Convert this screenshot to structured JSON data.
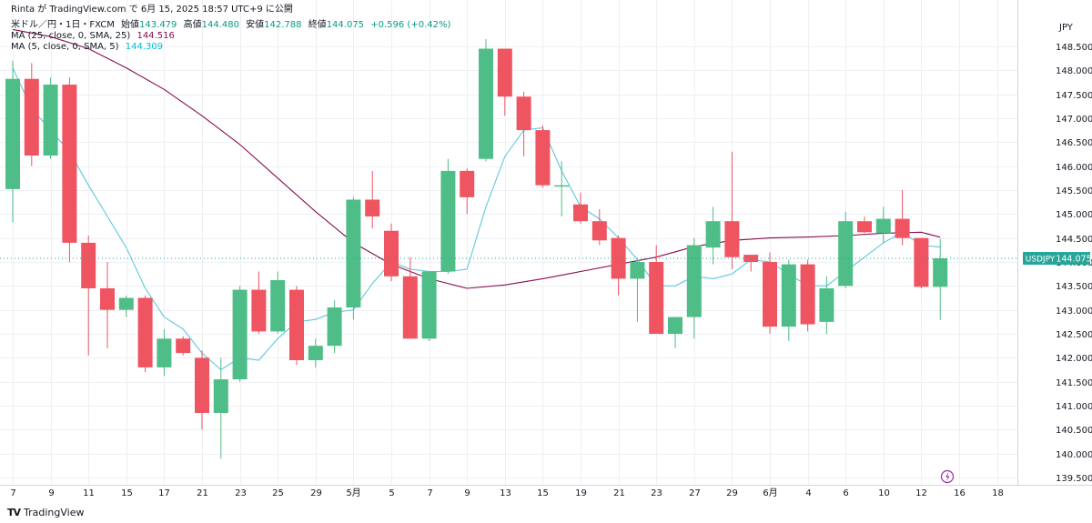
{
  "header": {
    "publish_line": "Rinta が TradingView.com で 6月 15, 2025 18:57 UTC+9 に公開",
    "symbol_line": "米ドル／円・1日・FXCM",
    "open_label": "始値",
    "open_value": "143.479",
    "high_label": "高値",
    "high_value": "144.480",
    "low_label": "安値",
    "low_value": "142.788",
    "close_label": "終値",
    "close_value": "144.075",
    "change_value": "+0.596 (+0.42%)",
    "ma25_label": "MA (25, close, 0, SMA, 25)",
    "ma25_value": "144.516",
    "ma5_label": "MA (5, close, 0, SMA, 5)",
    "ma5_value": "144.309"
  },
  "footer": {
    "logo_text": "TV",
    "brand": "TradingView"
  },
  "colors": {
    "up": "#4fbd87",
    "down": "#ef5461",
    "ma25": "#880e4f",
    "ma5": "#5ec8dc",
    "grid": "#eef0f4",
    "axis_text": "#131722",
    "price_tag": "#26a69a"
  },
  "chart_data": {
    "type": "candlestick",
    "currency": "JPY",
    "symbol_tag": "USDJPY",
    "last_price": 144.075,
    "ylim": [
      139.35,
      149.2
    ],
    "y_ticks": [
      139.5,
      140.0,
      140.5,
      141.0,
      141.5,
      142.0,
      142.5,
      143.0,
      143.5,
      144.0,
      144.5,
      145.0,
      145.5,
      146.0,
      146.5,
      147.0,
      147.5,
      148.0,
      148.5
    ],
    "x_ticks": [
      {
        "i": 0,
        "label": "7"
      },
      {
        "i": 2,
        "label": "9"
      },
      {
        "i": 4,
        "label": "11"
      },
      {
        "i": 6,
        "label": "15"
      },
      {
        "i": 8,
        "label": "17"
      },
      {
        "i": 10,
        "label": "21"
      },
      {
        "i": 12,
        "label": "23"
      },
      {
        "i": 14,
        "label": "25"
      },
      {
        "i": 16,
        "label": "29"
      },
      {
        "i": 18,
        "label": "5月"
      },
      {
        "i": 20,
        "label": "5"
      },
      {
        "i": 22,
        "label": "7"
      },
      {
        "i": 24,
        "label": "9"
      },
      {
        "i": 26,
        "label": "13"
      },
      {
        "i": 28,
        "label": "15"
      },
      {
        "i": 30,
        "label": "19"
      },
      {
        "i": 32,
        "label": "21"
      },
      {
        "i": 34,
        "label": "23"
      },
      {
        "i": 36,
        "label": "27"
      },
      {
        "i": 38,
        "label": "29"
      },
      {
        "i": 40,
        "label": "6月"
      },
      {
        "i": 42,
        "label": "4"
      },
      {
        "i": 44,
        "label": "6"
      },
      {
        "i": 46,
        "label": "10"
      },
      {
        "i": 48,
        "label": "12"
      },
      {
        "i": 50,
        "label": "16"
      },
      {
        "i": 52,
        "label": "18"
      }
    ],
    "candles": [
      {
        "o": 145.52,
        "h": 148.2,
        "l": 144.82,
        "c": 147.82
      },
      {
        "o": 147.82,
        "h": 148.15,
        "l": 146.0,
        "c": 146.22
      },
      {
        "o": 146.22,
        "h": 147.85,
        "l": 146.15,
        "c": 147.7
      },
      {
        "o": 147.7,
        "h": 147.85,
        "l": 144.0,
        "c": 144.4
      },
      {
        "o": 144.4,
        "h": 144.55,
        "l": 142.05,
        "c": 143.45
      },
      {
        "o": 143.45,
        "h": 144.0,
        "l": 142.2,
        "c": 143.0
      },
      {
        "o": 143.0,
        "h": 143.3,
        "l": 142.85,
        "c": 143.25
      },
      {
        "o": 143.25,
        "h": 143.3,
        "l": 141.7,
        "c": 141.8
      },
      {
        "o": 141.8,
        "h": 142.6,
        "l": 141.62,
        "c": 142.4
      },
      {
        "o": 142.4,
        "h": 142.45,
        "l": 142.05,
        "c": 142.1
      },
      {
        "o": 142.0,
        "h": 142.15,
        "l": 140.5,
        "c": 140.85
      },
      {
        "o": 140.85,
        "h": 142.0,
        "l": 139.9,
        "c": 141.55
      },
      {
        "o": 141.55,
        "h": 143.5,
        "l": 141.5,
        "c": 143.42
      },
      {
        "o": 143.42,
        "h": 143.8,
        "l": 142.5,
        "c": 142.55
      },
      {
        "o": 142.55,
        "h": 143.8,
        "l": 142.5,
        "c": 143.62
      },
      {
        "o": 143.42,
        "h": 143.5,
        "l": 141.85,
        "c": 141.95
      },
      {
        "o": 141.95,
        "h": 142.4,
        "l": 141.8,
        "c": 142.25
      },
      {
        "o": 142.25,
        "h": 143.2,
        "l": 142.1,
        "c": 143.05
      },
      {
        "o": 143.05,
        "h": 145.35,
        "l": 142.8,
        "c": 145.3
      },
      {
        "o": 145.3,
        "h": 145.9,
        "l": 144.7,
        "c": 144.95
      },
      {
        "o": 144.65,
        "h": 144.8,
        "l": 143.6,
        "c": 143.7
      },
      {
        "o": 143.7,
        "h": 144.1,
        "l": 142.4,
        "c": 142.4
      },
      {
        "o": 142.4,
        "h": 143.8,
        "l": 142.35,
        "c": 143.8
      },
      {
        "o": 143.8,
        "h": 146.15,
        "l": 143.75,
        "c": 145.9
      },
      {
        "o": 145.9,
        "h": 145.95,
        "l": 145.0,
        "c": 145.35
      },
      {
        "o": 146.15,
        "h": 148.65,
        "l": 146.1,
        "c": 148.45
      },
      {
        "o": 148.45,
        "h": 148.45,
        "l": 147.05,
        "c": 147.45
      },
      {
        "o": 147.45,
        "h": 147.55,
        "l": 146.2,
        "c": 146.75
      },
      {
        "o": 146.75,
        "h": 146.85,
        "l": 145.55,
        "c": 145.6
      },
      {
        "o": 145.6,
        "h": 146.1,
        "l": 144.95,
        "c": 145.6
      },
      {
        "o": 145.2,
        "h": 145.45,
        "l": 144.8,
        "c": 144.85
      },
      {
        "o": 144.85,
        "h": 145.1,
        "l": 144.35,
        "c": 144.45
      },
      {
        "o": 144.5,
        "h": 144.55,
        "l": 143.3,
        "c": 143.65
      },
      {
        "o": 143.65,
        "h": 144.05,
        "l": 142.75,
        "c": 144.0
      },
      {
        "o": 144.0,
        "h": 144.35,
        "l": 142.5,
        "c": 142.5
      },
      {
        "o": 142.5,
        "h": 142.85,
        "l": 142.2,
        "c": 142.85
      },
      {
        "o": 142.85,
        "h": 144.5,
        "l": 142.4,
        "c": 144.35
      },
      {
        "o": 144.3,
        "h": 145.15,
        "l": 143.95,
        "c": 144.85
      },
      {
        "o": 144.85,
        "h": 146.3,
        "l": 143.85,
        "c": 144.1
      },
      {
        "o": 144.15,
        "h": 144.15,
        "l": 143.8,
        "c": 144.0
      },
      {
        "o": 144.0,
        "h": 144.2,
        "l": 142.5,
        "c": 142.65
      },
      {
        "o": 142.65,
        "h": 144.05,
        "l": 142.35,
        "c": 143.95
      },
      {
        "o": 143.95,
        "h": 144.05,
        "l": 142.55,
        "c": 142.7
      },
      {
        "o": 142.75,
        "h": 143.7,
        "l": 142.5,
        "c": 143.45
      },
      {
        "o": 143.5,
        "h": 145.05,
        "l": 143.45,
        "c": 144.85
      },
      {
        "o": 144.85,
        "h": 144.95,
        "l": 144.6,
        "c": 144.62
      },
      {
        "o": 144.6,
        "h": 145.15,
        "l": 144.4,
        "c": 144.9
      },
      {
        "o": 144.9,
        "h": 145.5,
        "l": 144.35,
        "c": 144.5
      },
      {
        "o": 144.5,
        "h": 144.5,
        "l": 143.45,
        "c": 143.48
      },
      {
        "o": 143.48,
        "h": 144.48,
        "l": 142.79,
        "c": 144.075
      }
    ],
    "ma25": [
      [
        0,
        148.85
      ],
      [
        2,
        148.7
      ],
      [
        4,
        148.45
      ],
      [
        6,
        148.05
      ],
      [
        8,
        147.6
      ],
      [
        10,
        147.05
      ],
      [
        12,
        146.45
      ],
      [
        14,
        145.75
      ],
      [
        16,
        145.05
      ],
      [
        18,
        144.4
      ],
      [
        20,
        143.95
      ],
      [
        22,
        143.65
      ],
      [
        24,
        143.45
      ],
      [
        26,
        143.52
      ],
      [
        28,
        143.65
      ],
      [
        30,
        143.8
      ],
      [
        32,
        143.95
      ],
      [
        34,
        144.1
      ],
      [
        36,
        144.32
      ],
      [
        38,
        144.45
      ],
      [
        40,
        144.5
      ],
      [
        42,
        144.52
      ],
      [
        44,
        144.55
      ],
      [
        46,
        144.6
      ],
      [
        48,
        144.62
      ],
      [
        49,
        144.516
      ]
    ],
    "ma5": [
      [
        0,
        148.05
      ],
      [
        1,
        147.2
      ],
      [
        2,
        146.75
      ],
      [
        3,
        146.3
      ],
      [
        4,
        145.6
      ],
      [
        5,
        144.95
      ],
      [
        6,
        144.3
      ],
      [
        7,
        143.45
      ],
      [
        8,
        142.85
      ],
      [
        9,
        142.6
      ],
      [
        10,
        142.1
      ],
      [
        11,
        141.75
      ],
      [
        12,
        142.0
      ],
      [
        13,
        141.95
      ],
      [
        14,
        142.4
      ],
      [
        15,
        142.75
      ],
      [
        16,
        142.8
      ],
      [
        17,
        142.95
      ],
      [
        18,
        143.0
      ],
      [
        19,
        143.55
      ],
      [
        20,
        144.0
      ],
      [
        21,
        143.85
      ],
      [
        22,
        143.8
      ],
      [
        23,
        143.8
      ],
      [
        24,
        143.85
      ],
      [
        25,
        145.15
      ],
      [
        26,
        146.2
      ],
      [
        27,
        146.75
      ],
      [
        28,
        146.8
      ],
      [
        29,
        145.9
      ],
      [
        30,
        145.15
      ],
      [
        31,
        144.9
      ],
      [
        32,
        144.5
      ],
      [
        33,
        144.05
      ],
      [
        34,
        143.5
      ],
      [
        35,
        143.5
      ],
      [
        36,
        143.7
      ],
      [
        37,
        143.65
      ],
      [
        38,
        143.75
      ],
      [
        39,
        144.05
      ],
      [
        40,
        144.0
      ],
      [
        41,
        143.75
      ],
      [
        42,
        143.5
      ],
      [
        43,
        143.5
      ],
      [
        44,
        143.8
      ],
      [
        45,
        144.1
      ],
      [
        46,
        144.4
      ],
      [
        47,
        144.62
      ],
      [
        48,
        144.35
      ],
      [
        49,
        144.309
      ]
    ]
  }
}
